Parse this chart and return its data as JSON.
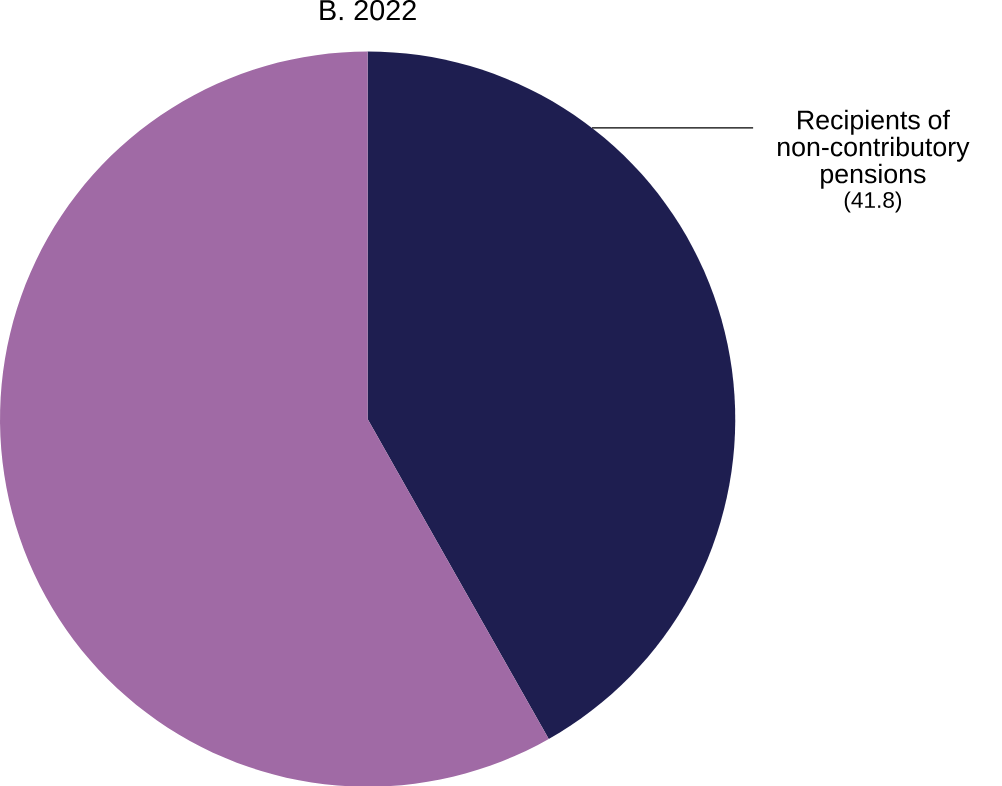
{
  "chart_data": {
    "type": "pie",
    "title": "B. 2022",
    "categories": [
      "Recipients of non-contributory pensions",
      null
    ],
    "values": [
      41.8,
      58.2
    ],
    "colors": [
      "#1e1e50",
      "#a06aa5"
    ],
    "value_labels": [
      "(41.8)",
      null
    ]
  }
}
